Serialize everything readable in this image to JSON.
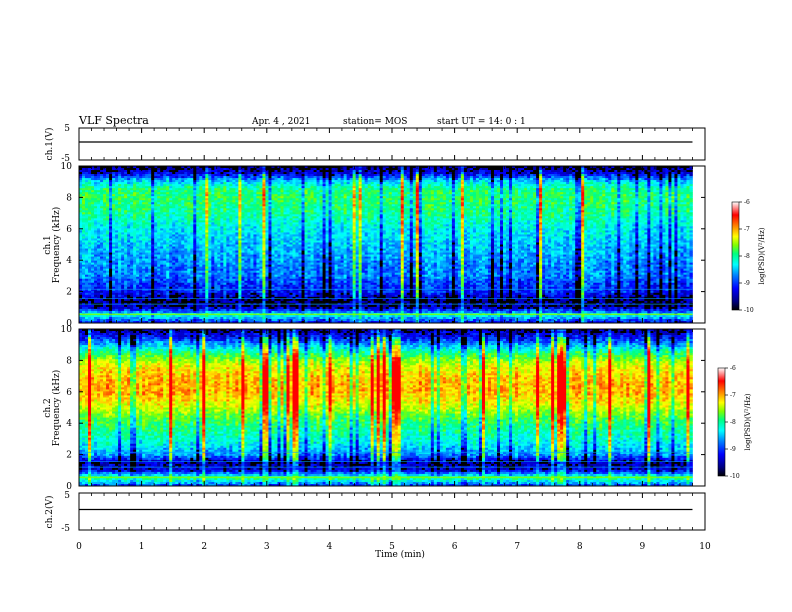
{
  "header": {
    "title": "VLF Spectra",
    "date": "Apr. 4  , 2021",
    "station": "station= MOS",
    "start_ut": "start  UT =   14: 0  : 1"
  },
  "panels": {
    "ch1_wave": {
      "ylabel": "ch.1(V)",
      "yticks": [
        "5",
        "-5"
      ]
    },
    "ch1_spec": {
      "ylabel_ch": "ch.1",
      "ylabel": "Frequency (kHz)",
      "yticks": [
        "0",
        "2",
        "4",
        "6",
        "8",
        "10"
      ]
    },
    "ch2_spec": {
      "ylabel_ch": "ch.2",
      "ylabel": "Frequency (kHz)",
      "yticks": [
        "0",
        "2",
        "4",
        "6",
        "8",
        "10"
      ]
    },
    "ch2_wave": {
      "ylabel": "ch.2(V)",
      "yticks": [
        "5",
        "-5"
      ]
    }
  },
  "xaxis": {
    "label": "Time  (min)",
    "ticks": [
      "0",
      "1",
      "2",
      "3",
      "4",
      "5",
      "6",
      "7",
      "8",
      "9",
      "10"
    ]
  },
  "colorbar": {
    "label": "log(PSD)(V²/Hz)",
    "ticks": [
      "-6",
      "-7",
      "-8",
      "-9",
      "-10"
    ]
  },
  "colors": {
    "colormap": [
      "#00007f",
      "#0000ff",
      "#0080ff",
      "#00ffff",
      "#00ff80",
      "#80ff00",
      "#ffff00",
      "#ff8000",
      "#ff0000"
    ],
    "background_band": "#000000"
  },
  "chart_data": [
    {
      "type": "line",
      "title": "",
      "ylabel": "ch.1(V)",
      "xlabel": "",
      "xlim": [
        0,
        10
      ],
      "ylim": [
        -5,
        5
      ],
      "series": [
        {
          "x": [
            0,
            9.8
          ],
          "values": [
            0,
            0
          ]
        }
      ]
    },
    {
      "type": "heatmap",
      "ylabel": "Frequency (kHz)",
      "xlim": [
        0,
        10
      ],
      "ylim": [
        0,
        10
      ],
      "data_xmax": 9.8,
      "zlim": [
        -10,
        -6
      ],
      "profile": {
        "freq_khz": [
          0,
          0.5,
          1.0,
          1.5,
          2.0,
          2.5,
          3.0,
          3.5,
          4.0,
          4.5,
          5.0,
          5.5,
          6.0,
          6.5,
          7.0,
          7.5,
          8.0,
          8.5,
          9.0,
          9.5,
          10.0
        ],
        "log_psd": [
          -9.5,
          -8.4,
          -9.8,
          -9.9,
          -9.4,
          -9.3,
          -9.0,
          -9.0,
          -8.9,
          -8.8,
          -8.7,
          -8.6,
          -8.5,
          -8.3,
          -8.1,
          -8.0,
          -7.9,
          -8.0,
          -8.6,
          -9.6,
          -10.0
        ]
      }
    },
    {
      "type": "heatmap",
      "ylabel": "Frequency (kHz)",
      "xlim": [
        0,
        10
      ],
      "ylim": [
        0,
        10
      ],
      "data_xmax": 9.8,
      "zlim": [
        -10,
        -6
      ],
      "profile": {
        "freq_khz": [
          0,
          0.5,
          1.0,
          1.5,
          2.0,
          2.5,
          3.0,
          3.5,
          4.0,
          4.5,
          5.0,
          5.5,
          6.0,
          6.5,
          7.0,
          7.5,
          8.0,
          8.5,
          9.0,
          9.5,
          10.0
        ],
        "log_psd": [
          -9.3,
          -8.0,
          -9.6,
          -9.8,
          -8.9,
          -8.6,
          -8.3,
          -8.1,
          -7.9,
          -7.6,
          -7.2,
          -6.9,
          -6.7,
          -6.7,
          -6.8,
          -7.0,
          -7.4,
          -8.0,
          -8.8,
          -9.5,
          -9.9
        ]
      }
    },
    {
      "type": "line",
      "title": "",
      "ylabel": "ch.2(V)",
      "xlabel": "Time  (min)",
      "xlim": [
        0,
        10
      ],
      "ylim": [
        -5,
        5
      ],
      "series": [
        {
          "x": [
            0,
            9.8
          ],
          "values": [
            0,
            0
          ]
        }
      ]
    }
  ]
}
